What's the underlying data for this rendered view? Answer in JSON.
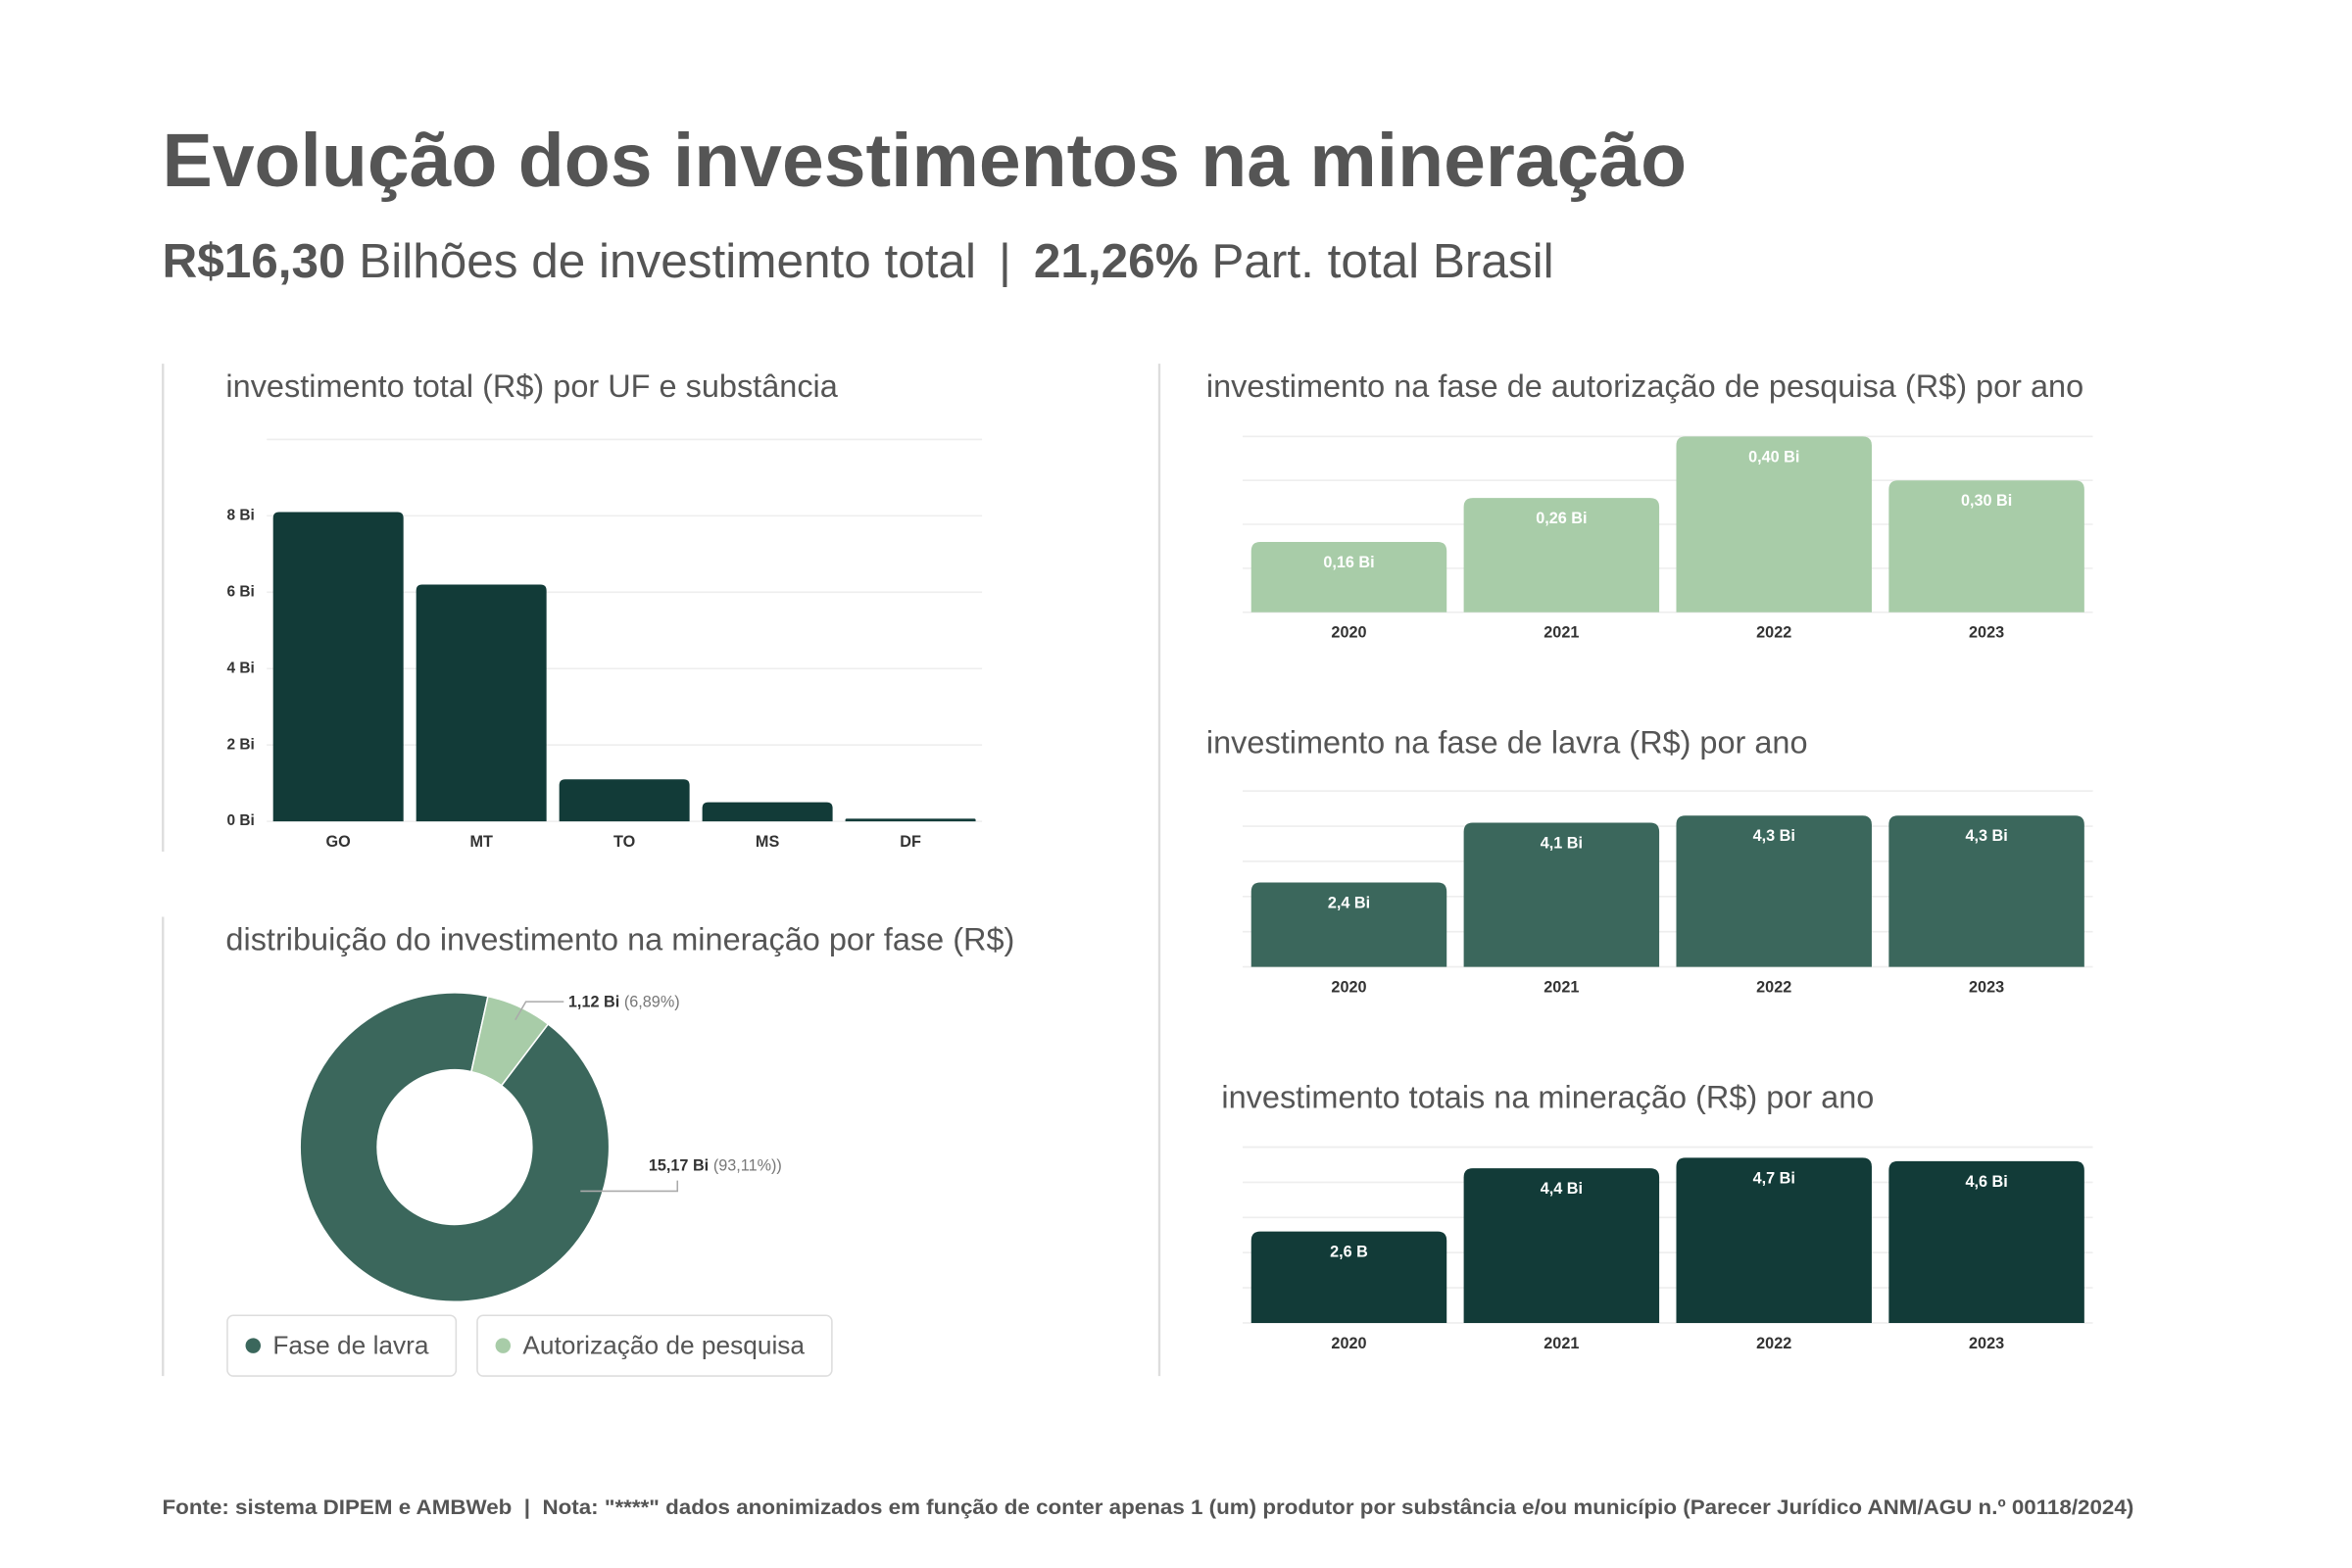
{
  "title": "Evolução dos investimentos na mineração",
  "subtitle": {
    "total": "R$16,30",
    "total_label": "Bilhões de investimento total",
    "separator": "|",
    "share": "21,26%",
    "share_label": "Part. total Brasil"
  },
  "footer": "Fonte: sistema DIPEM e AMBWeb  |  Nota: \"****\" dados anonimizados em função de conter apenas 1 (um) produtor por substância e/ou município (Parecer Jurídico ANM/AGU n.º 00118/2024)",
  "chart_data": [
    {
      "type": "bar",
      "title": "investimento total (R$) por UF e substância",
      "categories": [
        "GO",
        "MT",
        "TO",
        "MS",
        "DF"
      ],
      "values": [
        8.1,
        6.2,
        1.1,
        0.5,
        0.07
      ],
      "color": "#123b38",
      "ylim": [
        0,
        10
      ],
      "yticks": [
        {
          "value": 0,
          "label": "0 Bi"
        },
        {
          "value": 2,
          "label": "2 Bi"
        },
        {
          "value": 4,
          "label": "4 Bi"
        },
        {
          "value": 6,
          "label": "6 Bi"
        },
        {
          "value": 8,
          "label": "8 Bi"
        }
      ],
      "grid": true
    },
    {
      "type": "pie",
      "title": "distribuição do investimento na mineração por fase (R$)",
      "categories": [
        "Fase de lavra",
        "Autorização de pesquisa"
      ],
      "values": [
        15.17,
        1.12
      ],
      "value_labels": [
        "15,17 Bi",
        "1,12 Bi"
      ],
      "percent_labels": [
        "(93,11%))",
        "(6,89%)"
      ],
      "colors": [
        "#3b675c",
        "#a8cca8"
      ],
      "donut": true,
      "legend": "bottom"
    },
    {
      "type": "bar",
      "title": "investimento na fase de autorização de pesquisa (R$) por ano",
      "categories": [
        "2020",
        "2021",
        "2022",
        "2023"
      ],
      "values": [
        0.16,
        0.26,
        0.4,
        0.3
      ],
      "value_labels": [
        "0,16 Bi",
        "0,26 Bi",
        "0,40 Bi",
        "0,30 Bi"
      ],
      "color": "#a8cca8",
      "ylim": [
        0,
        0.4
      ],
      "yticks": [
        0,
        0.1,
        0.2,
        0.3,
        0.4
      ],
      "show_tick_labels": false,
      "grid": true
    },
    {
      "type": "bar",
      "title": "investimento na fase de lavra (R$) por ano",
      "categories": [
        "2020",
        "2021",
        "2022",
        "2023"
      ],
      "values": [
        2.4,
        4.1,
        4.3,
        4.3
      ],
      "value_labels": [
        "2,4 Bi",
        "4,1 Bi",
        "4,3 Bi",
        "4,3 Bi"
      ],
      "color": "#3b675c",
      "ylim": [
        0,
        5
      ],
      "yticks": [
        0,
        1,
        2,
        3,
        4,
        5
      ],
      "show_tick_labels": false,
      "grid": true
    },
    {
      "type": "bar",
      "title": "investimento totais na mineração (R$) por ano",
      "categories": [
        "2020",
        "2021",
        "2022",
        "2023"
      ],
      "values": [
        2.6,
        4.4,
        4.7,
        4.6
      ],
      "value_labels": [
        "2,6 B",
        "4,4 Bi",
        "4,7 Bi",
        "4,6 Bi"
      ],
      "color": "#123b38",
      "ylim": [
        0,
        5
      ],
      "yticks": [
        0,
        1,
        2,
        3,
        4,
        5
      ],
      "show_tick_labels": false,
      "grid": true
    }
  ]
}
